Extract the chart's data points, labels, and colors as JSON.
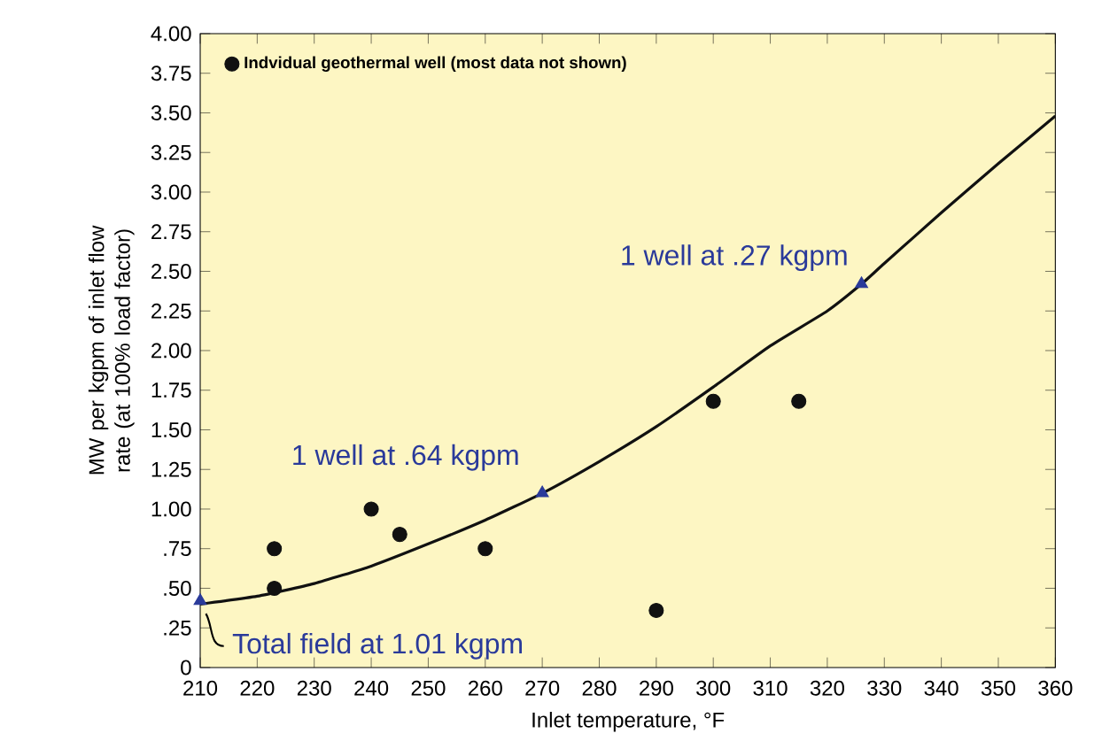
{
  "chart_data": {
    "type": "scatter",
    "xlabel": "Inlet temperature, °F",
    "ylabel": "MW per kgpm of inlet flow rate (at 100% load factor)",
    "xlim": [
      210,
      360
    ],
    "xticks": [
      210,
      220,
      230,
      240,
      250,
      260,
      270,
      280,
      290,
      300,
      310,
      320,
      330,
      340,
      350,
      360
    ],
    "ylim": [
      0,
      4
    ],
    "yticks": [
      {
        "value": 0,
        "label": "0"
      },
      {
        "value": 0.25,
        "label": ".25"
      },
      {
        "value": 0.5,
        "label": ".50"
      },
      {
        "value": 0.75,
        "label": ".75"
      },
      {
        "value": 1,
        "label": "1.00"
      },
      {
        "value": 1.25,
        "label": "1.25"
      },
      {
        "value": 1.5,
        "label": "1.50"
      },
      {
        "value": 1.75,
        "label": "1.75"
      },
      {
        "value": 2,
        "label": "2.00"
      },
      {
        "value": 2.25,
        "label": "2.25"
      },
      {
        "value": 2.5,
        "label": "2.50"
      },
      {
        "value": 2.75,
        "label": "2.75"
      },
      {
        "value": 3,
        "label": "3.00"
      },
      {
        "value": 3.25,
        "label": "3.25"
      },
      {
        "value": 3.5,
        "label": "3.50"
      },
      {
        "value": 3.75,
        "label": "3.75"
      },
      {
        "value": 4,
        "label": "4.00"
      }
    ],
    "grid": false,
    "legend": "top left",
    "series": [
      {
        "name": "Indvidual  geothermal well (most data not shown)",
        "marker": "circle",
        "color": "#111111",
        "x": [
          223,
          223,
          240,
          245,
          260,
          290,
          300,
          315
        ],
        "values": [
          0.75,
          0.5,
          1.0,
          0.84,
          0.75,
          0.36,
          1.68,
          1.68
        ]
      },
      {
        "type": "line",
        "marker": "none",
        "color": "#111111",
        "x": [
          210,
          220,
          230,
          240,
          250,
          260,
          270,
          280,
          290,
          300,
          310,
          320,
          326,
          330,
          340,
          350,
          360
        ],
        "values": [
          0.4,
          0.45,
          0.53,
          0.64,
          0.78,
          0.93,
          1.1,
          1.3,
          1.52,
          1.77,
          2.03,
          2.25,
          2.42,
          2.55,
          2.87,
          3.18,
          3.48
        ]
      },
      {
        "marker": "triangle",
        "color": "#2a3a9a",
        "x": [
          210,
          270,
          326
        ],
        "values": [
          0.42,
          1.1,
          2.42
        ]
      }
    ],
    "annotations": [
      {
        "text": "1 well at .27 kgpm",
        "x": 326,
        "y": 2.42
      },
      {
        "text": "1 well at .64 kgpm",
        "x": 270,
        "y": 1.1
      },
      {
        "text": "Total field at 1.01 kgpm",
        "x": 210,
        "y": 0.42
      }
    ]
  }
}
